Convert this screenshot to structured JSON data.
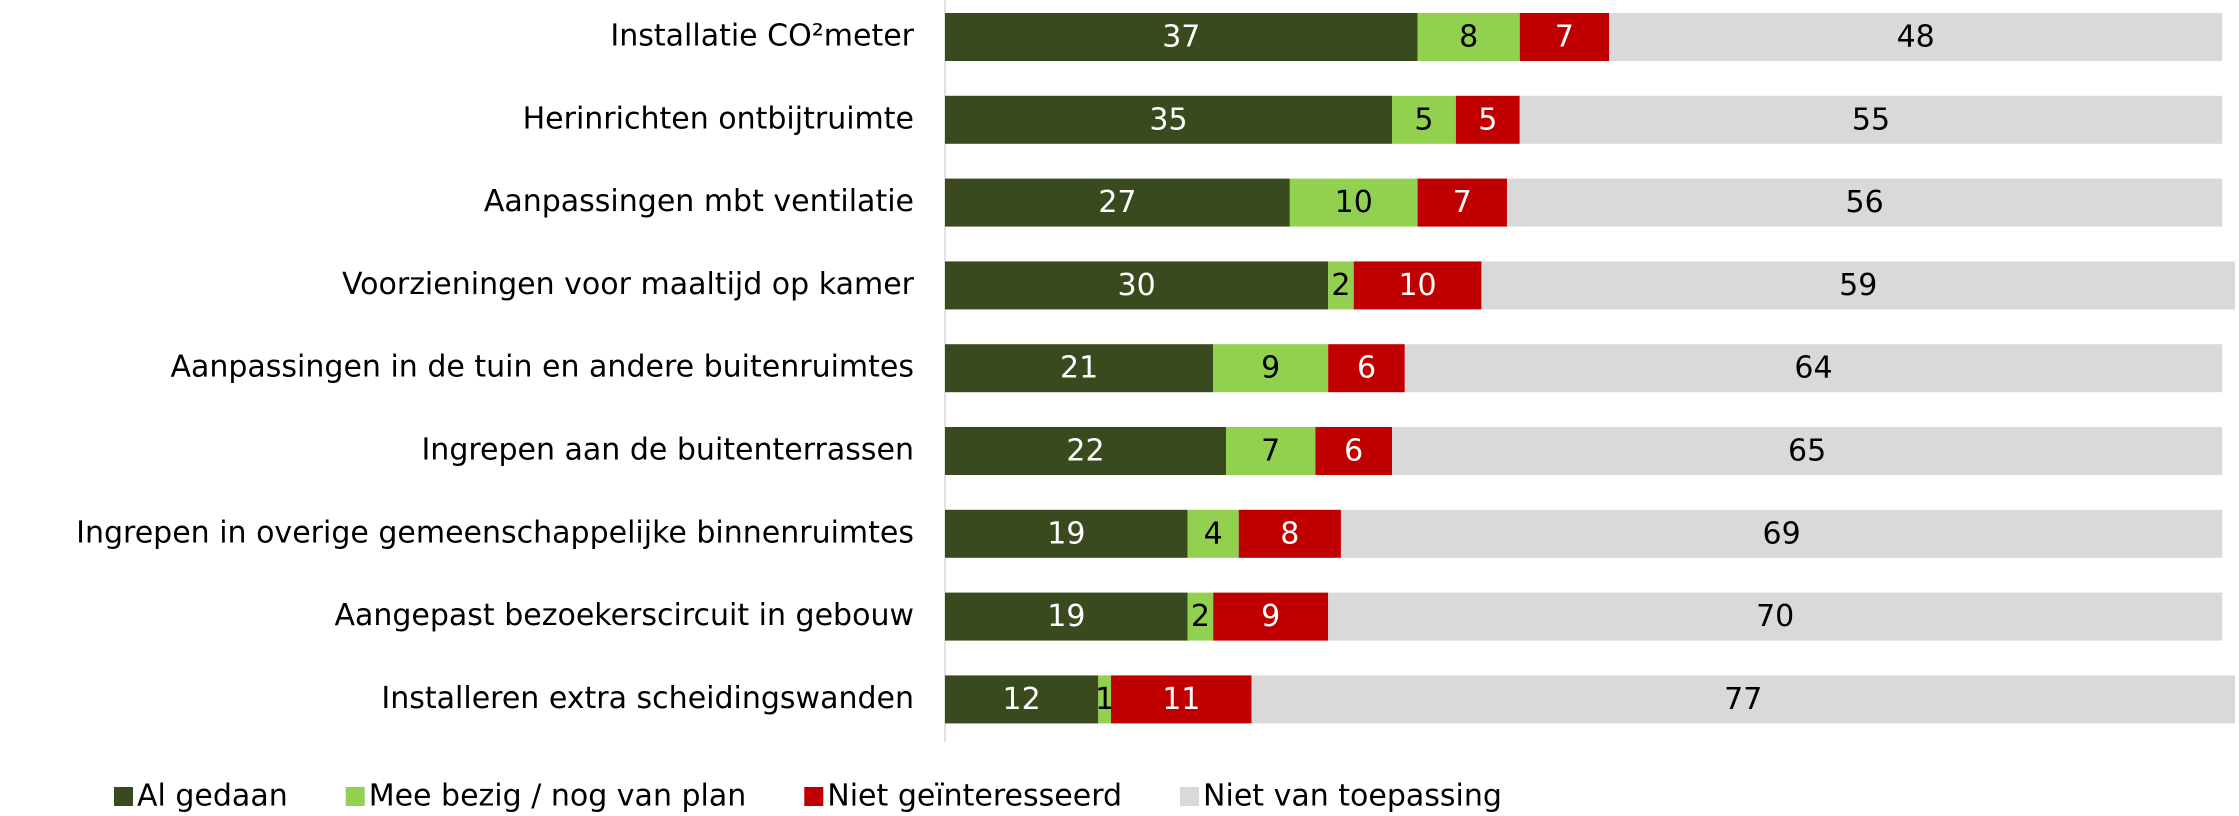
{
  "chart_data": {
    "type": "stacked_barh",
    "categories": [
      "Installatie CO²meter",
      "Herinrichten ontbijtruimte",
      "Aanpassingen mbt ventilatie",
      "Voorzieningen voor maaltijd op kamer",
      "Aanpassingen in de tuin en andere buitenruimtes",
      "Ingrepen aan de buitenterrassen",
      "Ingrepen in overige gemeenschappelijke binnenruimtes",
      "Aangepast bezoekerscircuit in gebouw",
      "Installeren extra scheidingswanden"
    ],
    "series": [
      {
        "name": "Al gedaan",
        "color": "#3a4a1f",
        "label_color": "#ffffff",
        "values": [
          37,
          35,
          27,
          30,
          21,
          22,
          19,
          19,
          12
        ]
      },
      {
        "name": "Mee bezig / nog van plan",
        "color": "#92d050",
        "label_color": "#000000",
        "values": [
          8,
          5,
          10,
          2,
          9,
          7,
          4,
          2,
          1
        ]
      },
      {
        "name": "Niet geïnteresseerd",
        "color": "#c00000",
        "label_color": "#ffffff",
        "values": [
          7,
          5,
          7,
          10,
          6,
          6,
          8,
          9,
          11
        ]
      },
      {
        "name": "Niet van toepassing",
        "color": "#d9d9d9",
        "label_color": "#000000",
        "values": [
          48,
          55,
          56,
          59,
          64,
          65,
          69,
          70,
          77
        ]
      }
    ],
    "xlim": [
      0,
      101
    ],
    "legend": "bottom"
  }
}
